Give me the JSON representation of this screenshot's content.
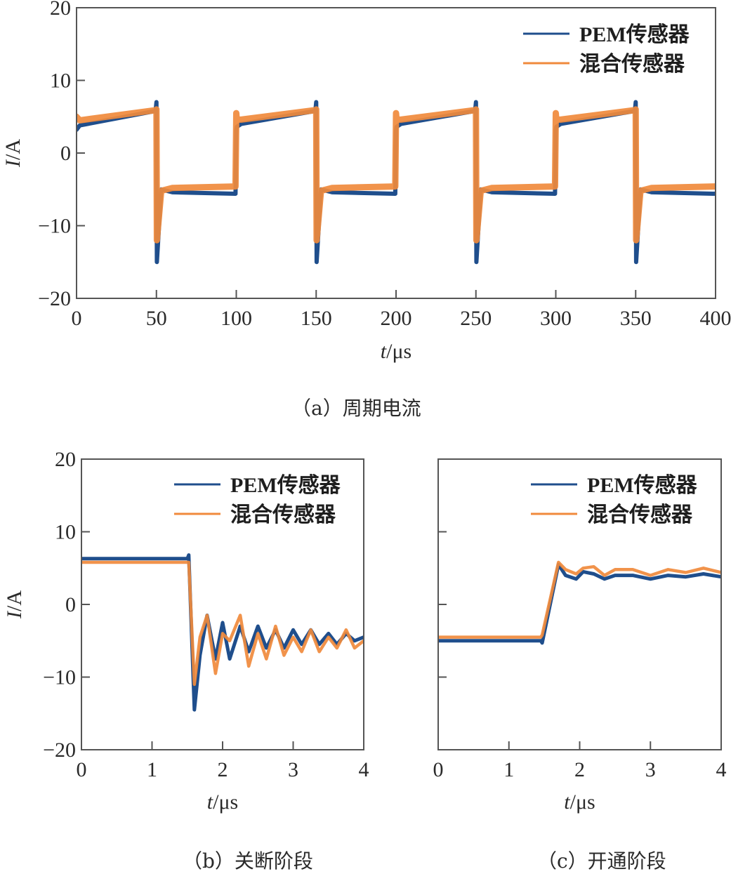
{
  "colors": {
    "pem": "#1f4e8c",
    "hybrid": "#f08a3c",
    "axis": "#555555",
    "text": "#2a2a2a"
  },
  "captions": {
    "a": "（a）周期电流",
    "b": "（b）关断阶段",
    "c": "（c）开通阶段"
  },
  "chart_data": [
    {
      "id": "a",
      "type": "line",
      "title": "（a）周期电流",
      "xlabel": "t/μs",
      "ylabel": "I/A",
      "xlim": [
        0,
        400
      ],
      "ylim": [
        -20,
        20
      ],
      "xticks": [
        0,
        50,
        100,
        150,
        200,
        250,
        300,
        350,
        400
      ],
      "yticks": [
        -20,
        -10,
        0,
        10,
        20
      ],
      "grid": false,
      "legend": {
        "position": "upper right",
        "entries": [
          "PEM传感器",
          "混合传感器"
        ]
      },
      "series": [
        {
          "name": "PEM传感器",
          "color": "#1f4e8c",
          "x": [
            0,
            2,
            49.5,
            50,
            50.3,
            53,
            60,
            99.5,
            100,
            100.3,
            103,
            149.5,
            150,
            150.3,
            153,
            160,
            199.5,
            200,
            200.3,
            203,
            249.5,
            250,
            250.3,
            253,
            260,
            299.5,
            300,
            300.3,
            303,
            349.5,
            350,
            350.3,
            353,
            360,
            400
          ],
          "y": [
            3.2,
            3.8,
            5.8,
            7.0,
            -15.0,
            -5.0,
            -5.4,
            -5.6,
            3.2,
            3.6,
            4.0,
            5.8,
            7.0,
            -15.0,
            -5.0,
            -5.4,
            -5.6,
            3.2,
            3.6,
            4.0,
            5.8,
            7.0,
            -15.0,
            -5.0,
            -5.4,
            -5.6,
            3.2,
            3.6,
            4.0,
            5.8,
            7.0,
            -15.0,
            -5.0,
            -5.4,
            -5.6
          ]
        },
        {
          "name": "混合传感器",
          "color": "#f08a3c",
          "x": [
            0,
            2,
            49.5,
            50,
            50.3,
            53,
            60,
            99.5,
            100,
            100.3,
            103,
            149.5,
            150,
            150.3,
            153,
            160,
            199.5,
            200,
            200.3,
            203,
            249.5,
            250,
            250.3,
            253,
            260,
            299.5,
            300,
            300.3,
            303,
            349.5,
            350,
            350.3,
            353,
            360,
            400
          ],
          "y": [
            5.0,
            4.5,
            5.9,
            6.0,
            -12.0,
            -5.2,
            -4.8,
            -4.6,
            5.5,
            4.6,
            4.6,
            5.9,
            6.0,
            -12.0,
            -5.2,
            -4.8,
            -4.6,
            5.5,
            4.6,
            4.6,
            5.9,
            6.0,
            -12.0,
            -5.2,
            -4.8,
            -4.6,
            5.5,
            4.6,
            4.6,
            5.9,
            6.0,
            -12.0,
            -5.2,
            -4.8,
            -4.6
          ]
        }
      ]
    },
    {
      "id": "b",
      "type": "line",
      "title": "（b）关断阶段",
      "xlabel": "t/μs",
      "ylabel": "I/A",
      "xlim": [
        0,
        4
      ],
      "ylim": [
        -20,
        20
      ],
      "xticks": [
        0,
        1,
        2,
        3,
        4
      ],
      "yticks": [
        -20,
        -10,
        0,
        10,
        20
      ],
      "grid": false,
      "legend": {
        "position": "upper right",
        "entries": [
          "PEM传感器",
          "混合传感器"
        ]
      },
      "series": [
        {
          "name": "PEM传感器",
          "color": "#1f4e8c",
          "x": [
            0,
            1.5,
            1.52,
            1.6,
            1.68,
            1.78,
            1.9,
            2.0,
            2.1,
            2.25,
            2.37,
            2.5,
            2.62,
            2.75,
            2.87,
            3.0,
            3.12,
            3.25,
            3.37,
            3.5,
            3.62,
            3.75,
            3.87,
            4.0
          ],
          "y": [
            6.3,
            6.3,
            6.8,
            -14.5,
            -7.0,
            -1.5,
            -7.5,
            -2.5,
            -7.5,
            -3.0,
            -6.5,
            -3.0,
            -6.0,
            -3.5,
            -6.0,
            -3.5,
            -5.5,
            -3.5,
            -5.5,
            -4.0,
            -5.5,
            -4.0,
            -5.0,
            -4.5
          ]
        },
        {
          "name": "混合传感器",
          "color": "#f08a3c",
          "x": [
            0,
            1.5,
            1.52,
            1.6,
            1.68,
            1.78,
            1.9,
            2.0,
            2.1,
            2.25,
            2.37,
            2.5,
            2.62,
            2.75,
            2.87,
            3.0,
            3.12,
            3.25,
            3.37,
            3.5,
            3.62,
            3.75,
            3.87,
            4.0
          ],
          "y": [
            5.8,
            5.8,
            5.8,
            -11.0,
            -4.5,
            -1.5,
            -9.5,
            -4.0,
            -5.0,
            -1.5,
            -8.5,
            -4.0,
            -7.5,
            -3.0,
            -7.0,
            -4.5,
            -6.5,
            -3.5,
            -6.5,
            -4.5,
            -6.0,
            -3.5,
            -6.0,
            -5.0
          ]
        }
      ]
    },
    {
      "id": "c",
      "type": "line",
      "title": "（c）开通阶段",
      "xlabel": "t/μs",
      "ylabel": "",
      "xlim": [
        0,
        4
      ],
      "ylim": [
        -20,
        20
      ],
      "xticks": [
        0,
        1,
        2,
        3,
        4
      ],
      "yticks": [
        -20,
        -10,
        0,
        10,
        20
      ],
      "ytick_labels_visible": false,
      "grid": false,
      "legend": {
        "position": "upper right",
        "entries": [
          "PEM传感器",
          "混合传感器"
        ]
      },
      "series": [
        {
          "name": "PEM传感器",
          "color": "#1f4e8c",
          "x": [
            0,
            1.45,
            1.47,
            1.7,
            1.8,
            1.95,
            2.05,
            2.2,
            2.35,
            2.5,
            2.75,
            3.0,
            3.25,
            3.5,
            3.75,
            4.0
          ],
          "y": [
            -5.0,
            -5.0,
            -5.3,
            5.5,
            4.0,
            3.5,
            4.5,
            4.2,
            3.5,
            4.0,
            4.0,
            3.5,
            4.0,
            3.8,
            4.2,
            3.8
          ]
        },
        {
          "name": "混合传感器",
          "color": "#f08a3c",
          "x": [
            0,
            1.45,
            1.47,
            1.7,
            1.8,
            1.95,
            2.05,
            2.2,
            2.35,
            2.5,
            2.75,
            3.0,
            3.25,
            3.5,
            3.75,
            4.0
          ],
          "y": [
            -4.5,
            -4.5,
            -4.2,
            5.8,
            4.8,
            4.2,
            5.0,
            5.2,
            4.0,
            4.8,
            4.8,
            4.0,
            4.8,
            4.4,
            5.0,
            4.4
          ]
        }
      ]
    }
  ]
}
